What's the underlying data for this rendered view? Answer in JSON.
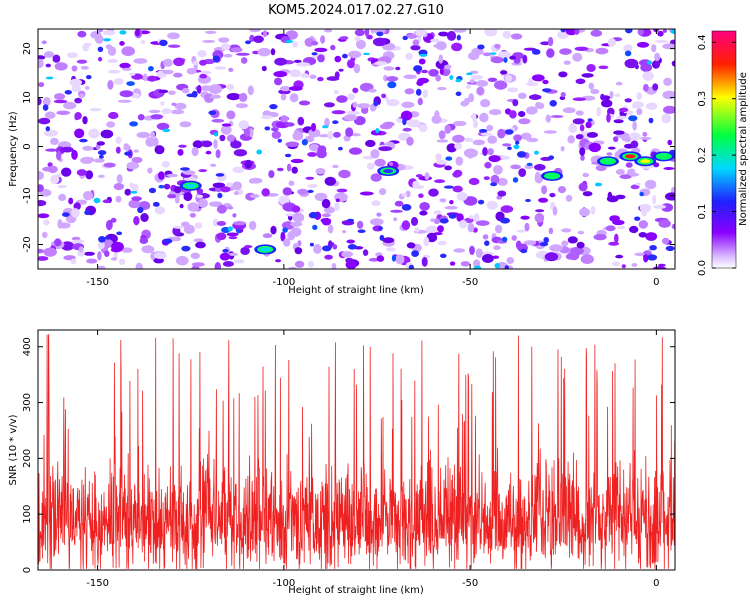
{
  "title": "KOM5.2024.017.02.27.G10",
  "chart_data": [
    {
      "type": "heatmap",
      "xlabel": "Height of straight line (km)",
      "ylabel": "Frequency (Hz)",
      "xlim": [
        -166,
        5
      ],
      "ylim": [
        -25,
        24
      ],
      "x_ticks": [
        -150,
        -100,
        -50,
        0
      ],
      "y_ticks": [
        -20,
        -10,
        0,
        10,
        20
      ],
      "colorbar": {
        "label": "Normalized spectral amplitude",
        "range": [
          0.0,
          0.42
        ],
        "ticks": [
          0.0,
          0.1,
          0.2,
          0.3,
          0.4
        ],
        "colors": [
          "#ffffff",
          "#8a00ff",
          "#2020ff",
          "#00d8ff",
          "#00ff00",
          "#ffff00",
          "#ff2000",
          "#ff0080"
        ]
      },
      "features": [
        {
          "x": -7,
          "y": -2,
          "value": 0.4
        },
        {
          "x": -3,
          "y": -3,
          "value": 0.32
        },
        {
          "x": -13,
          "y": -3,
          "value": 0.2
        },
        {
          "x": 2,
          "y": -2,
          "value": 0.25
        },
        {
          "x": -28,
          "y": -6,
          "value": 0.2
        },
        {
          "x": -125,
          "y": -8,
          "value": 0.15
        },
        {
          "x": -105,
          "y": -21,
          "value": 0.15
        },
        {
          "x": -72,
          "y": -5,
          "value": 0.12
        }
      ],
      "grid": false
    },
    {
      "type": "line",
      "xlabel": "Height of straight line (km)",
      "ylabel": "SNR (10 * v/v)",
      "xlim": [
        -166,
        5
      ],
      "ylim": [
        0,
        430
      ],
      "x_ticks": [
        -150,
        -100,
        -50,
        0
      ],
      "y_ticks": [
        0,
        100,
        200,
        300,
        400
      ],
      "series_color": "#ee2020",
      "typical_range": [
        40,
        230
      ],
      "peak_max": 430,
      "grid": false
    }
  ]
}
